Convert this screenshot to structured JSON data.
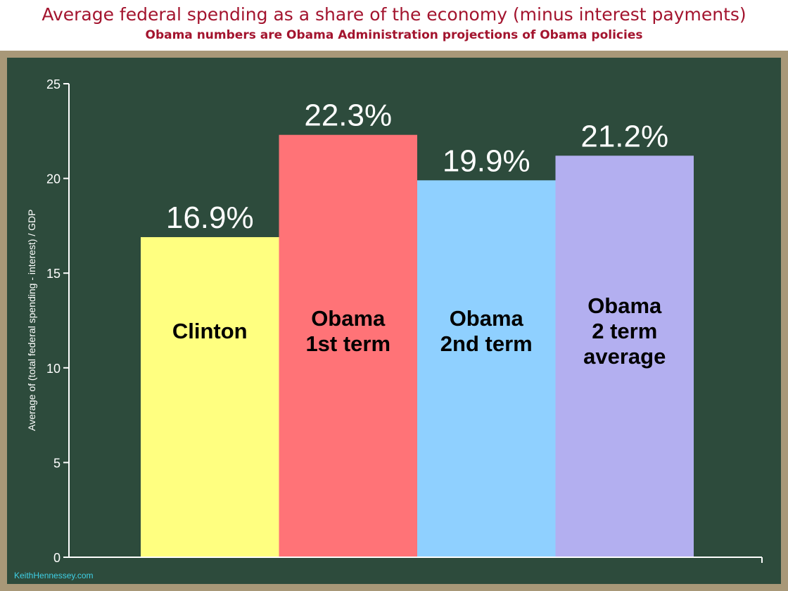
{
  "chart_data": {
    "type": "bar",
    "title": "Average federal spending as a share of the economy (minus interest payments)",
    "subtitle": "Obama numbers are Obama Administration projections of Obama policies",
    "ylabel": "Average of (total federal spending - interest) / GDP",
    "ylim": [
      0,
      25
    ],
    "yticks": [
      "0",
      "5",
      "10",
      "15",
      "20",
      "25"
    ],
    "grid": false,
    "categories": [
      {
        "lines": [
          "Clinton"
        ],
        "value": 16.9,
        "label": "16.9%",
        "color": "#ffff80"
      },
      {
        "lines": [
          "Obama",
          "1st term"
        ],
        "value": 22.3,
        "label": "22.3%",
        "color": "#ff7377"
      },
      {
        "lines": [
          "Obama",
          "2nd term"
        ],
        "value": 19.9,
        "label": "19.9%",
        "color": "#8fd0ff"
      },
      {
        "lines": [
          "Obama",
          "2 term",
          "average"
        ],
        "value": 21.2,
        "label": "21.2%",
        "color": "#b3aff0"
      }
    ],
    "colors": {
      "axis": "#ffffff",
      "title": "#a3142e",
      "board": "#2d4b3c",
      "frame": "#a89878",
      "credit": "#3fd0e6"
    }
  },
  "credit": "KeithHennessey.com"
}
